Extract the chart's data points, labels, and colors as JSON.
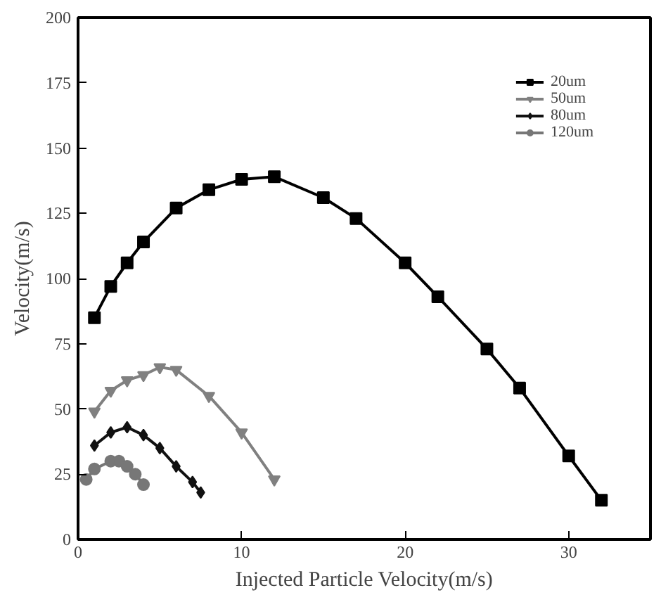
{
  "chart_data": {
    "type": "line",
    "xlabel": "Injected Particle Velocity(m/s)",
    "ylabel": "Velocity(m/s)",
    "xlim": [
      0,
      35
    ],
    "ylim": [
      0,
      200
    ],
    "xticks": [
      0,
      10,
      20,
      30
    ],
    "yticks": [
      0,
      25,
      50,
      75,
      100,
      125,
      150,
      175,
      200
    ],
    "grid": false,
    "legend": "top right",
    "line_style": "solid",
    "series": [
      {
        "name": "20um",
        "color": "#000000",
        "marker": "square",
        "x": [
          1,
          2,
          3,
          4,
          6,
          8,
          10,
          12,
          15,
          17,
          20,
          22,
          25,
          27,
          30,
          32
        ],
        "values": [
          85,
          97,
          106,
          114,
          127,
          134,
          138,
          139,
          131,
          123,
          106,
          93,
          73,
          58,
          32,
          15
        ]
      },
      {
        "name": "50um",
        "color": "#808080",
        "marker": "triangle",
        "x": [
          1,
          2,
          3,
          4,
          5,
          6,
          8,
          10,
          12
        ],
        "values": [
          49,
          57,
          61,
          63,
          66,
          65,
          55,
          41,
          23
        ]
      },
      {
        "name": "80um",
        "color": "#111111",
        "marker": "diamond",
        "x": [
          1,
          2,
          3,
          4,
          5,
          6,
          7,
          7.5
        ],
        "values": [
          36,
          41,
          43,
          40,
          35,
          28,
          22,
          18
        ]
      },
      {
        "name": "120um",
        "color": "#777777",
        "marker": "circle",
        "x": [
          0.5,
          1,
          2,
          2.5,
          3,
          3.5,
          4
        ],
        "values": [
          23,
          27,
          30,
          30,
          28,
          25,
          21
        ]
      }
    ]
  }
}
